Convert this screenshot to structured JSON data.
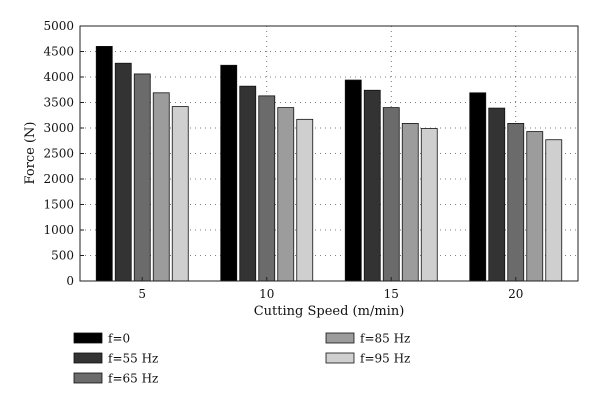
{
  "chart_data": {
    "type": "bar",
    "xlabel": "Cutting Speed (m/min)",
    "ylabel": "Force (N)",
    "categories": [
      "5",
      "10",
      "15",
      "20"
    ],
    "ylim": [
      0,
      5000
    ],
    "yticks": [
      "0",
      "500",
      "1000",
      "1500",
      "2000",
      "2500",
      "3000",
      "3500",
      "4000",
      "4500",
      "5000"
    ],
    "grid": true,
    "legend_position": "bottom",
    "series": [
      {
        "name": "f=0",
        "color": "#000000",
        "values": [
          4600,
          4230,
          3940,
          3690
        ]
      },
      {
        "name": "f=55 Hz",
        "color": "#333333",
        "values": [
          4270,
          3820,
          3740,
          3390
        ]
      },
      {
        "name": "f=65 Hz",
        "color": "#6b6b6b",
        "values": [
          4060,
          3630,
          3400,
          3090
        ]
      },
      {
        "name": "f=85 Hz",
        "color": "#9c9c9c",
        "values": [
          3690,
          3400,
          3090,
          2930
        ]
      },
      {
        "name": "f=95 Hz",
        "color": "#cfcfcf",
        "values": [
          3420,
          3170,
          2990,
          2770
        ]
      }
    ]
  }
}
